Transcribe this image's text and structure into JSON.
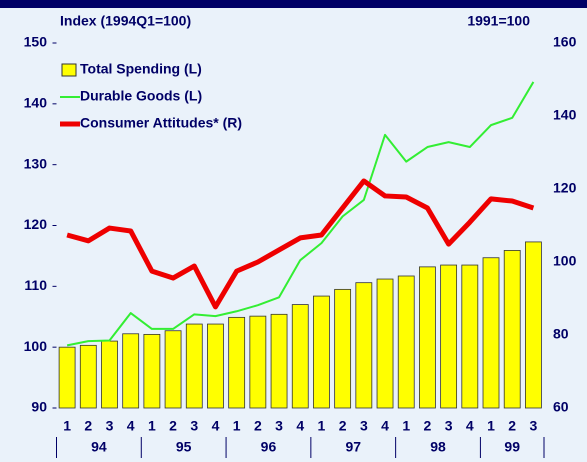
{
  "chart_data": {
    "type": "bar_line",
    "y_label": "Index (1994Q1=100)",
    "y2_label": "1991=100",
    "categories": [
      "1",
      "2",
      "3",
      "4",
      "1",
      "2",
      "3",
      "4",
      "1",
      "2",
      "3",
      "4",
      "1",
      "2",
      "3",
      "4",
      "1",
      "2",
      "3",
      "4",
      "1",
      "2",
      "3"
    ],
    "year_groups": [
      {
        "label": "94",
        "count": 4
      },
      {
        "label": "95",
        "count": 4
      },
      {
        "label": "96",
        "count": 4
      },
      {
        "label": "97",
        "count": 4
      },
      {
        "label": "98",
        "count": 4
      },
      {
        "label": "99",
        "count": 3
      }
    ],
    "ylim": [
      90,
      150
    ],
    "yticks": [
      90,
      100,
      110,
      120,
      130,
      140,
      150
    ],
    "y2lim": [
      60,
      160
    ],
    "y2ticks": [
      60,
      80,
      100,
      120,
      140,
      160
    ],
    "series": [
      {
        "name": "Total Spending (L)",
        "kind": "bar",
        "color": "#ffff00",
        "values": [
          100,
          100.3,
          101,
          102.2,
          102.1,
          102.7,
          103.8,
          103.8,
          104.9,
          105.1,
          105.4,
          107,
          108.4,
          109.5,
          110.6,
          111.2,
          111.7,
          113.2,
          113.5,
          113.5,
          114.7,
          115.9,
          117.3
        ]
      },
      {
        "name": "Durable Goods (L)",
        "kind": "line",
        "color": "#33ee33",
        "values": [
          100.3,
          101,
          101.1,
          105.6,
          103,
          103,
          105.4,
          105.1,
          105.9,
          106.9,
          108.2,
          114.3,
          117.1,
          121.5,
          124.2,
          134.9,
          130.5,
          132.9,
          133.7,
          132.9,
          136.5,
          137.7,
          143.6
        ]
      },
      {
        "name": "Consumer Attitudes* (R)",
        "kind": "line",
        "axis": "y2",
        "color": "#ee0000",
        "values": [
          107.4,
          105.8,
          109.3,
          108.5,
          97.5,
          95.6,
          98.9,
          87.7,
          97.5,
          100,
          103.3,
          106.6,
          107.4,
          114.8,
          122.2,
          118.1,
          117.8,
          114.8,
          104.9,
          110.9,
          117.3,
          116.7,
          114.8
        ]
      }
    ]
  }
}
